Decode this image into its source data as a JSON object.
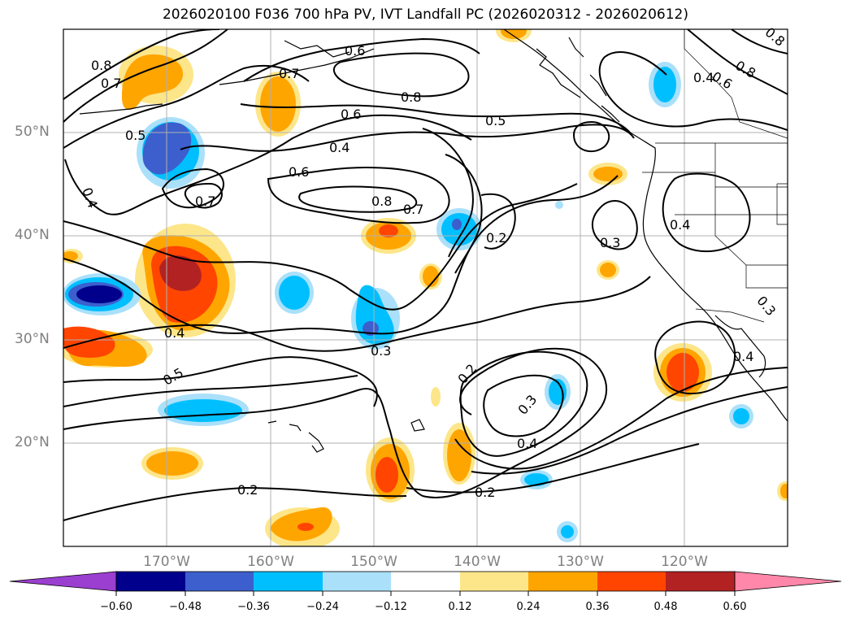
{
  "title": "2026020100 F036 700 hPa PV, IVT Landfall PC (2026020312 - 2026020612)",
  "lat_labels": [
    "50°N",
    "40°N",
    "30°N",
    "20°N"
  ],
  "lon_labels": [
    "170°W",
    "160°W",
    "150°W",
    "140°W",
    "130°W",
    "120°W"
  ],
  "colorbar": {
    "ticks": [
      "−0.60",
      "−0.48",
      "−0.36",
      "−0.24",
      "−0.12",
      "0.12",
      "0.24",
      "0.36",
      "0.48",
      "0.60"
    ],
    "colors": [
      "#9a3fd0",
      "#00008c",
      "#3c5fcd",
      "#00bfff",
      "#aae0fa",
      "#ffffff",
      "#fde68a",
      "#ffa500",
      "#ff4500",
      "#b22222",
      "#ff88aa"
    ]
  },
  "contour_labels": [
    "0.8",
    "0.7",
    "0.6",
    "0.7",
    "0.8",
    "0.5",
    "0.6",
    "0.5",
    "0.4",
    "0.6",
    "0.8",
    "0.7",
    "0.4",
    "0.7",
    "0.2",
    "0.3",
    "0.4",
    "0.4",
    "0.3",
    "0.4",
    "0.3",
    "0.5",
    "0.2",
    "0.3",
    "0.4",
    "0.2",
    "0.2",
    "0.4",
    "0.8",
    "0.6",
    "0.8"
  ],
  "fill_colors": {
    "orange": "#ffa500",
    "red": "#ff4500",
    "darkred": "#b22222",
    "yellow": "#fde68a",
    "blue": "#00bfff",
    "lightblue": "#aae0fa",
    "royal": "#3c5fcd",
    "navy": "#00008c"
  }
}
